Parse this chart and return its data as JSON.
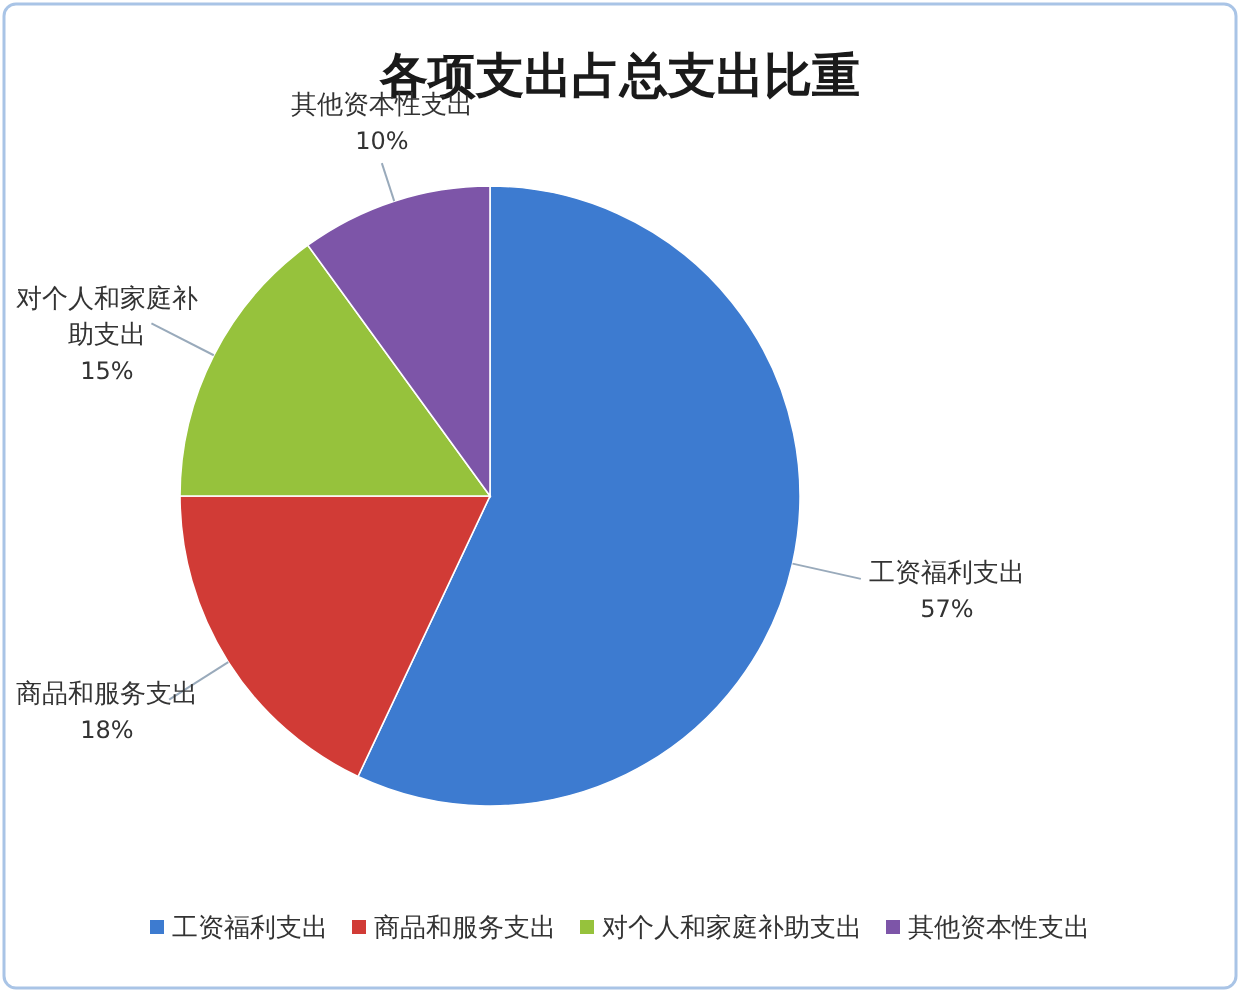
{
  "chart_data": {
    "type": "pie",
    "title": "各项支出占总支出比重",
    "categories": [
      "工资福利支出",
      "商品和服务支出",
      "对个人和家庭补助支出",
      "其他资本性支出"
    ],
    "values": [
      57,
      18,
      15,
      10
    ],
    "colors": [
      "#3d7bd0",
      "#d13b36",
      "#96c23c",
      "#7d55a8"
    ],
    "value_labels": [
      "57%",
      "18%",
      "15%",
      "10%"
    ],
    "legend": "bottom"
  }
}
